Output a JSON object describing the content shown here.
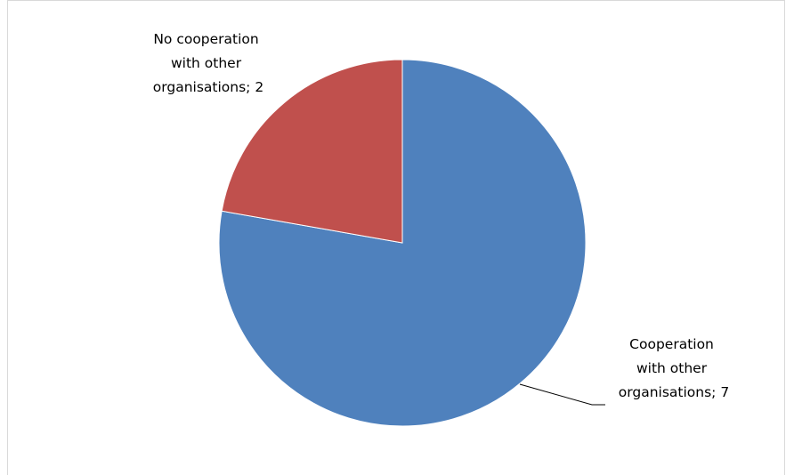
{
  "colors": {
    "cooperation": "#4f81bd",
    "no_cooperation": "#c0504d",
    "slice_border": "#ffffff",
    "leader_line": "#000000",
    "frame_border": "#d9d9d9"
  },
  "chart_data": {
    "type": "pie",
    "title": "",
    "legend": "none",
    "slices": [
      {
        "category": "Cooperation with other organisations",
        "value": 7,
        "label_lines": [
          "Cooperation",
          "with other",
          "organisations; 7"
        ],
        "color": "#4f81bd"
      },
      {
        "category": "No cooperation with other organisations",
        "value": 2,
        "label_lines": [
          "No cooperation",
          "with other",
          "organisations; 2"
        ],
        "color": "#c0504d"
      }
    ]
  }
}
